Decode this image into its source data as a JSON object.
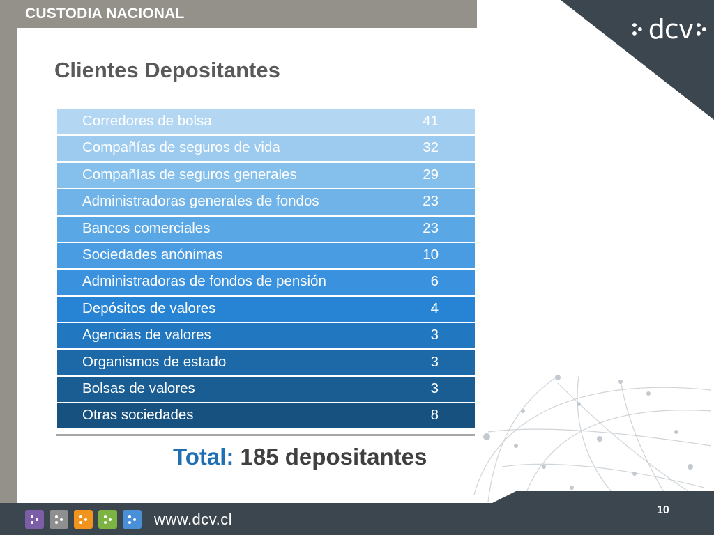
{
  "header": {
    "title": "CUSTODIA NACIONAL"
  },
  "logo": {
    "text": "dcv"
  },
  "slide": {
    "title": "Clientes Depositantes"
  },
  "table": {
    "rows": [
      {
        "label": "Corredores de bolsa",
        "value": "41",
        "color": "#b3d7f2"
      },
      {
        "label": "Compañías de seguros de vida",
        "value": "32",
        "color": "#9ccbef"
      },
      {
        "label": "Compañías de seguros generales",
        "value": "29",
        "color": "#85bfec"
      },
      {
        "label": "Administradoras generales de fondos",
        "value": "23",
        "color": "#6fb3e8"
      },
      {
        "label": "Bancos comerciales",
        "value": "23",
        "color": "#5aa7e5"
      },
      {
        "label": "Sociedades anónimas",
        "value": "10",
        "color": "#4a9ce2"
      },
      {
        "label": "Administradoras de fondos de pensión",
        "value": "6",
        "color": "#3a91de"
      },
      {
        "label": "Depósitos de valores",
        "value": "4",
        "color": "#2784d4"
      },
      {
        "label": "Agencias de valores",
        "value": "3",
        "color": "#2177c0"
      },
      {
        "label": "Organismos de estado",
        "value": "3",
        "color": "#1d69a8"
      },
      {
        "label": "Bolsas de valores",
        "value": "3",
        "color": "#1a5d93"
      },
      {
        "label": "Otras sociedades",
        "value": "8",
        "color": "#17517f"
      }
    ]
  },
  "total": {
    "label": "Total:",
    "value": "185 depositantes"
  },
  "footer": {
    "url": "www.dcv.cl",
    "page": "10",
    "icons": [
      {
        "name": "purple-dots-icon",
        "color": "#7b5ea7"
      },
      {
        "name": "gray-dots-icon",
        "color": "#8f8f8f"
      },
      {
        "name": "orange-dots-icon",
        "color": "#f0941e"
      },
      {
        "name": "green-dots-icon",
        "color": "#7cb342"
      },
      {
        "name": "blue-dots-icon",
        "color": "#4a90d9"
      }
    ]
  },
  "colors": {
    "header": "#94918a",
    "corner": "#3c464e",
    "accent": "#1f6fb4"
  }
}
